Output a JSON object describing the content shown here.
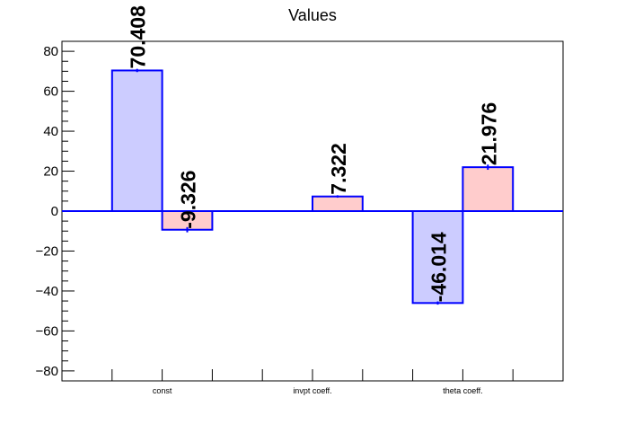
{
  "chart_data": {
    "type": "bar",
    "title": "Values",
    "categories": [
      "const",
      "invpt coeff.",
      "theta coeff."
    ],
    "series": [
      {
        "values": [
          70.408,
          0,
          -46.014
        ],
        "errors": [
          0.8,
          0,
          0.8
        ]
      },
      {
        "values": [
          -9.326,
          7.322,
          21.976
        ],
        "errors": [
          1.3,
          0.6,
          1.3
        ]
      }
    ],
    "value_labels": [
      [
        "70.408",
        "",
        "-46.014"
      ],
      [
        "-9.326",
        "7.322",
        "21.976"
      ]
    ],
    "ylim": [
      -85,
      85
    ],
    "yticks": [
      -80,
      -60,
      -40,
      -20,
      0,
      20,
      40,
      60,
      80
    ],
    "ytick_labels": [
      "−80",
      "−60",
      "−40",
      "−20",
      "0",
      "20",
      "40",
      "60",
      "80"
    ],
    "colors": {
      "series_fills": [
        "#ccccff",
        "#ffcccc"
      ],
      "bar_stroke": "#0000ff",
      "zero_line": "#0000ff",
      "error_bar": "#0000ff",
      "axis": "#000000"
    },
    "grid": false,
    "xlabel": "",
    "ylabel": ""
  }
}
